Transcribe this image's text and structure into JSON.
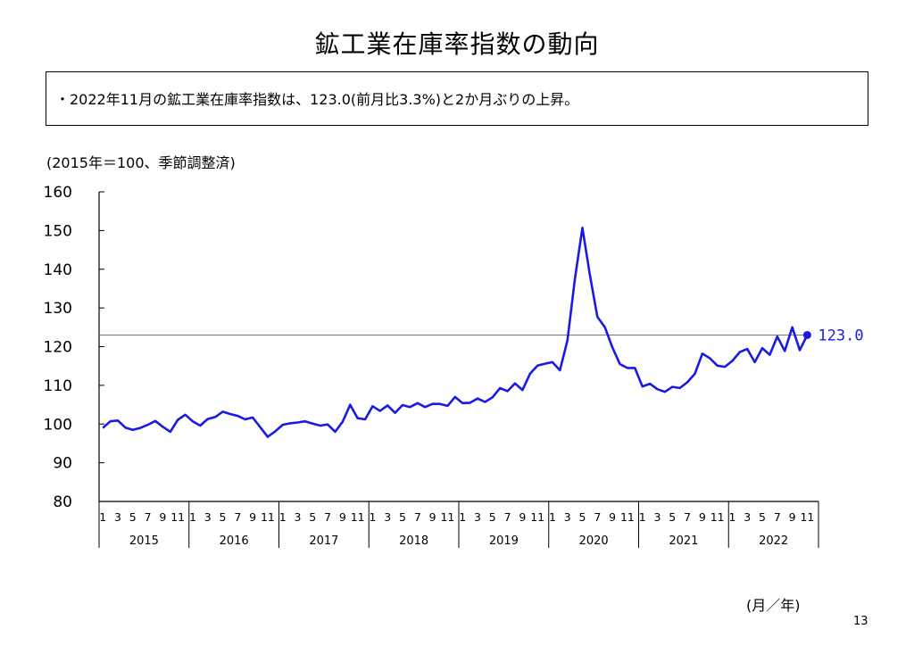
{
  "page": {
    "title": "鉱工業在庫率指数の動向",
    "summary": "・2022年11月の鉱工業在庫率指数は、123.0(前月比3.3%)と2か月ぶりの上昇。",
    "unit_note": "(2015年＝100、季節調整済)",
    "x_unit": "(月／年)",
    "page_number": "13"
  },
  "chart_data": {
    "type": "line",
    "ylim": [
      80,
      160
    ],
    "yticks": [
      80,
      90,
      100,
      110,
      120,
      130,
      140,
      150,
      160
    ],
    "month_tick_labels": [
      "1",
      "3",
      "5",
      "7",
      "9",
      "11"
    ],
    "years": [
      "2015",
      "2016",
      "2017",
      "2018",
      "2019",
      "2020",
      "2021",
      "2022"
    ],
    "series": [
      {
        "color": "#1a1ae6",
        "start": "2015-01",
        "values": [
          99.0,
          100.7,
          100.9,
          99.1,
          98.5,
          99.0,
          99.8,
          100.8,
          99.3,
          98.0,
          101.1,
          102.4,
          100.7,
          99.6,
          101.3,
          101.8,
          103.2,
          102.6,
          102.1,
          101.2,
          101.7,
          99.2,
          96.7,
          98.1,
          99.8,
          100.2,
          100.4,
          100.7,
          100.1,
          99.6,
          99.9,
          98.0,
          100.6,
          105.0,
          101.5,
          101.2,
          104.6,
          103.4,
          104.8,
          102.9,
          104.9,
          104.4,
          105.4,
          104.4,
          105.2,
          105.2,
          104.7,
          107.0,
          105.4,
          105.5,
          106.6,
          105.7,
          106.9,
          109.3,
          108.5,
          110.5,
          108.8,
          113.0,
          115.1,
          115.6,
          116.0,
          113.9,
          121.6,
          137.5,
          150.7,
          138.5,
          127.7,
          125.0,
          119.8,
          115.5,
          114.5,
          114.5,
          109.7,
          110.4,
          109.0,
          108.3,
          109.6,
          109.3,
          110.8,
          113.0,
          118.2,
          117.0,
          115.1,
          114.8,
          116.3,
          118.6,
          119.4,
          116.0,
          119.6,
          117.9,
          122.6,
          118.9,
          125.0,
          119.1,
          123.0
        ]
      }
    ],
    "latest": {
      "period": "2022-11",
      "value": 123.0,
      "label": "123.0"
    },
    "reference_line": {
      "value": 123.0
    }
  }
}
